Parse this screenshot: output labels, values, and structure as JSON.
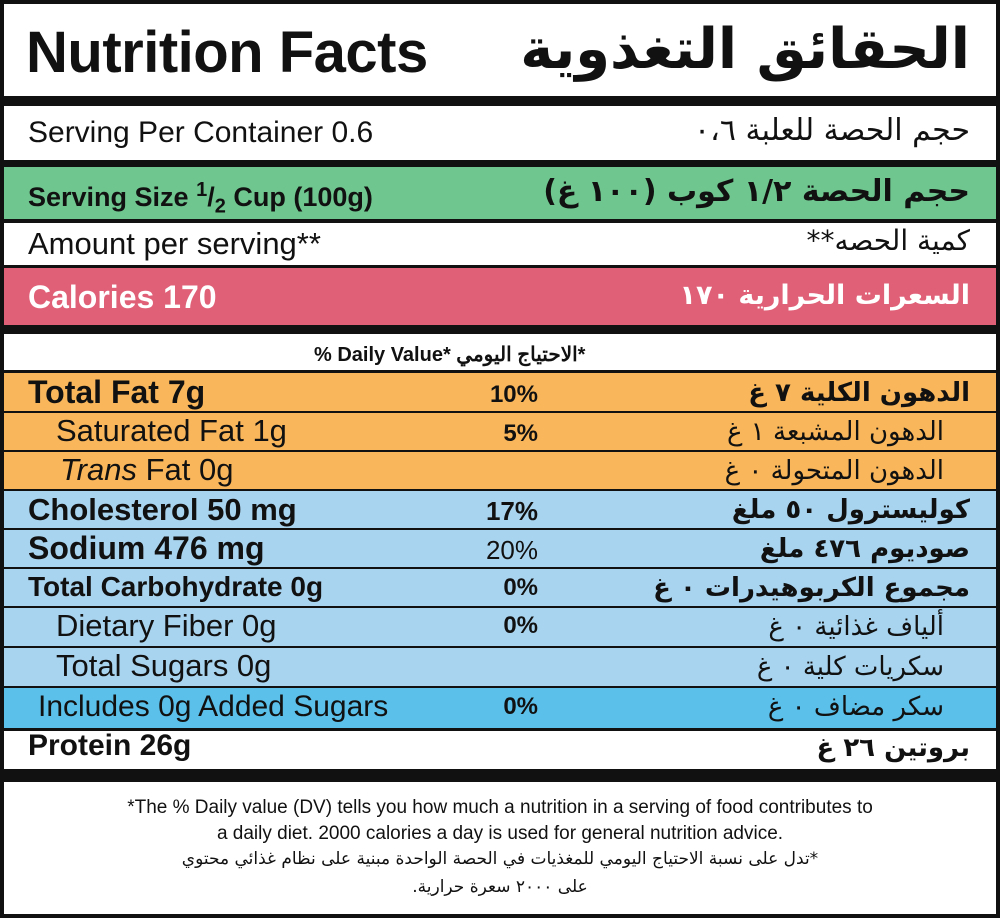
{
  "title": {
    "en": "Nutrition Facts",
    "ar": "الحقائق التغذوية"
  },
  "serving_per_container": {
    "en": "Serving Per Container 0.6",
    "ar": "حجم الحصة للعلبة ٠،٦"
  },
  "serving_size": {
    "en_prefix": "Serving Size ",
    "en_num": "1",
    "en_den": "2",
    "en_suffix": " Cup (100g)",
    "ar": "حجم الحصة ١/٢ كوب (١٠٠ غ)"
  },
  "amount_per_serving": {
    "en": "Amount per serving**",
    "ar": "كمية الحصه**"
  },
  "calories": {
    "en": "Calories 170",
    "ar": "السعرات الحرارية ١٧٠"
  },
  "daily_value_header": "% Daily Value*  الاحتياج اليومي*",
  "nutrients": [
    {
      "en": "Total Fat 7g",
      "pct": "10%",
      "ar": "الدهون الكلية ٧ غ"
    },
    {
      "en": "Saturated Fat 1g",
      "pct": "5%",
      "ar": "الدهون المشبعة ١ غ"
    },
    {
      "en_italic": "Trans",
      "en": " Fat 0g",
      "pct": "",
      "ar": "الدهون المتحولة ٠ غ"
    },
    {
      "en": "Cholesterol 50 mg",
      "pct": "17%",
      "ar": "كوليسترول ٥٠ ملغ"
    },
    {
      "en": "Sodium 476 mg",
      "pct": "20%",
      "ar": "صوديوم ٤٧٦ ملغ"
    },
    {
      "en": "Total Carbohydrate 0g",
      "pct": "0%",
      "ar": "مجموع الكربوهيدرات ٠ غ"
    },
    {
      "en": "Dietary Fiber 0g",
      "pct": "0%",
      "ar": "ألياف غذائية ٠ غ"
    },
    {
      "en": "Total Sugars 0g",
      "pct": "",
      "ar": "سكريات كلية ٠ غ"
    },
    {
      "en": "Includes 0g Added Sugars",
      "pct": "0%",
      "ar": "سكر مضاف ٠ غ"
    },
    {
      "en": "Protein 26g",
      "pct": "",
      "ar": "بروتين ٢٦ غ"
    }
  ],
  "footnote": {
    "en_line1": "*The % Daily value (DV) tells you how much a nutrition in a serving of food contributes to",
    "en_line2": "a daily diet. 2000 calories a day is used for general nutrition advice.",
    "ar_line1": "*تدل على نسبة الاحتياج اليومي للمغذيات في الحصة الواحدة مبنية على نظام غذائي محتوي",
    "ar_line2": "على ٢٠٠٠ سعرة حرارية."
  },
  "colors": {
    "fat": "#f9b65a",
    "serving_size": "#6fc68f",
    "calories": "#e06077",
    "light_blue": "#a9d4ef",
    "added_sugars": "#5bc0ea"
  }
}
